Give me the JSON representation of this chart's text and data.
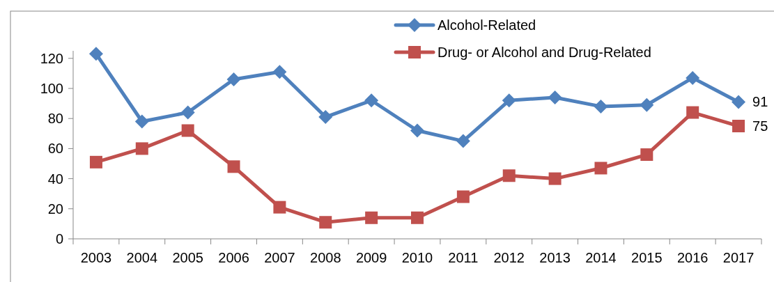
{
  "chart_data": {
    "type": "line",
    "categories": [
      "2003",
      "2004",
      "2005",
      "2006",
      "2007",
      "2008",
      "2009",
      "2010",
      "2011",
      "2012",
      "2013",
      "2014",
      "2015",
      "2016",
      "2017"
    ],
    "series": [
      {
        "name": "Alcohol-Related",
        "color": "#4f81bd",
        "marker": "diamond",
        "values": [
          123,
          78,
          84,
          106,
          111,
          81,
          92,
          72,
          65,
          92,
          94,
          88,
          89,
          107,
          91
        ],
        "value_labels": [
          null,
          null,
          null,
          null,
          null,
          null,
          null,
          null,
          null,
          null,
          null,
          null,
          null,
          null,
          "91"
        ]
      },
      {
        "name": "Drug- or Alcohol and Drug-Related",
        "color": "#c0504d",
        "marker": "square",
        "values": [
          51,
          60,
          72,
          48,
          21,
          11,
          14,
          14,
          28,
          42,
          40,
          47,
          56,
          84,
          75
        ],
        "value_labels": [
          null,
          null,
          null,
          null,
          null,
          null,
          null,
          null,
          null,
          null,
          null,
          null,
          null,
          null,
          "75"
        ]
      }
    ],
    "ylim": [
      0,
      125
    ],
    "yticks": [
      0,
      20,
      40,
      60,
      80,
      100,
      120
    ],
    "legend": "top right",
    "grid": false
  }
}
